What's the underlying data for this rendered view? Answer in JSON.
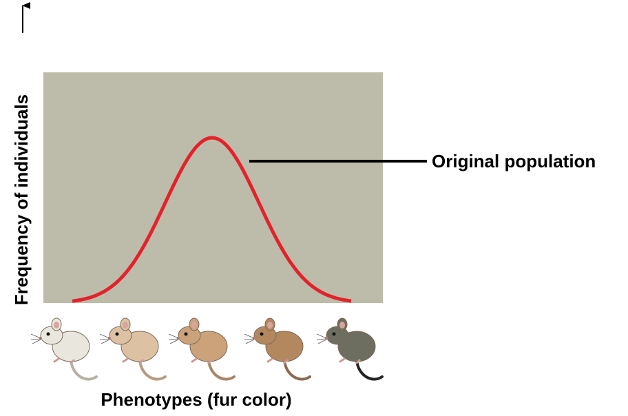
{
  "y_axis_label": "Frequency of individuals",
  "x_axis_label": "Phenotypes (fur color)",
  "curve_label": "Original population"
}
